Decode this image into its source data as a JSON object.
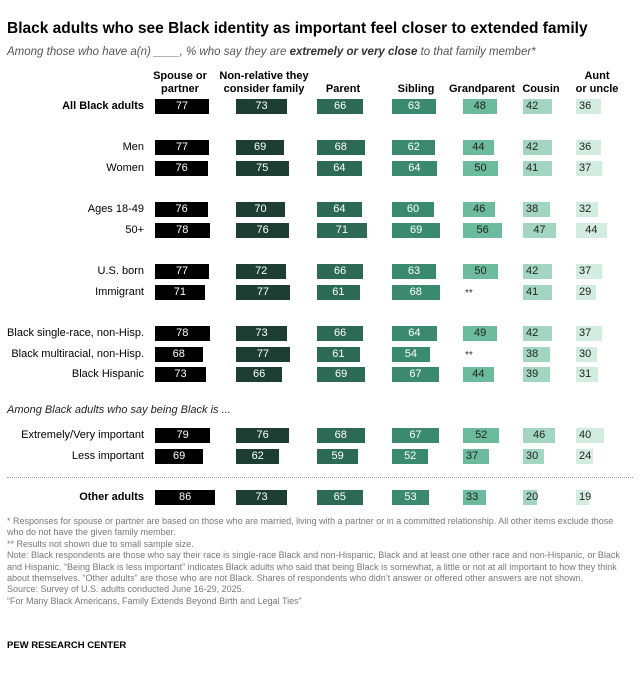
{
  "title": "Black adults who see Black identity as important feel closer to extended family",
  "subtitle": {
    "prefix": "Among those who have a(n) ____, % who say they are ",
    "emphasis": "extremely or very close",
    "suffix": " to that family member*"
  },
  "section_label": "Among Black adults who say being Black is ...",
  "notes": [
    "* Responses for spouse or partner are based on those who are married, living with a partner or in a committed relationship. All other items exclude those who do not have the given family member.",
    "** Results not shown due to small sample size.",
    "Note: Black respondents are those who say their race is single-race Black and non-Hispanic, Black and at least one other race and non-Hispanic, or Black and Hispanic. “Being Black is less important” indicates Black adults who said that being Black is somewhat, a little or not at all important to how they think about themselves. “Other adults” are those who are not Black. Shares of respondents who didn’t answer or offered other answers are not shown.",
    "Source: Survey of U.S. adults conducted June 16-29, 2025.",
    "“For Many Black Americans, Family Extends Beyond Birth and Legal Ties”"
  ],
  "organization": "PEW RESEARCH CENTER",
  "colors": [
    "#000000",
    "#1d3e33",
    "#2c6a55",
    "#3b8a70",
    "#6dbb9e",
    "#a3d6c2",
    "#d2ece1"
  ],
  "chart_data": {
    "type": "bar",
    "categories": [
      "Spouse or partner",
      "Non-relative they consider family",
      "Parent",
      "Sibling",
      "Grandparent",
      "Cousin",
      "Aunt or uncle"
    ],
    "category_display": [
      [
        "Spouse or",
        "partner"
      ],
      [
        "Non-relative they",
        "consider family"
      ],
      [
        "Parent"
      ],
      [
        "Sibling"
      ],
      [
        "Grandparent"
      ],
      [
        "Cousin"
      ],
      [
        "Aunt",
        "or uncle"
      ]
    ],
    "rows": [
      {
        "label": "All Black adults",
        "bold": true,
        "values": [
          77,
          73,
          66,
          63,
          48,
          42,
          36
        ]
      },
      {
        "label": "Men",
        "values": [
          77,
          69,
          68,
          62,
          44,
          42,
          36
        ]
      },
      {
        "label": "Women",
        "values": [
          76,
          75,
          64,
          64,
          50,
          41,
          37
        ]
      },
      {
        "label": "Ages 18-49",
        "values": [
          76,
          70,
          64,
          60,
          46,
          38,
          32
        ]
      },
      {
        "label": "50+",
        "values": [
          78,
          76,
          71,
          69,
          56,
          47,
          44
        ]
      },
      {
        "label": "U.S. born",
        "values": [
          77,
          72,
          66,
          63,
          50,
          42,
          37
        ]
      },
      {
        "label": "Immigrant",
        "values": [
          71,
          77,
          61,
          68,
          null,
          41,
          29
        ]
      },
      {
        "label": "Black single-race, non-Hisp.",
        "values": [
          78,
          73,
          66,
          64,
          49,
          42,
          37
        ]
      },
      {
        "label": "Black multiracial, non-Hisp.",
        "values": [
          68,
          77,
          61,
          54,
          null,
          38,
          30
        ]
      },
      {
        "label": "Black Hispanic",
        "values": [
          73,
          66,
          69,
          67,
          44,
          39,
          31
        ]
      },
      {
        "label": "Extremely/Very important",
        "values": [
          79,
          76,
          68,
          67,
          52,
          46,
          40
        ]
      },
      {
        "label": "Less important",
        "values": [
          69,
          62,
          59,
          52,
          37,
          30,
          24
        ]
      },
      {
        "label": "Other adults",
        "bold": true,
        "values": [
          86,
          73,
          65,
          53,
          33,
          20,
          19
        ]
      }
    ],
    "na_label": "**",
    "xlim": [
      0,
      100
    ]
  }
}
